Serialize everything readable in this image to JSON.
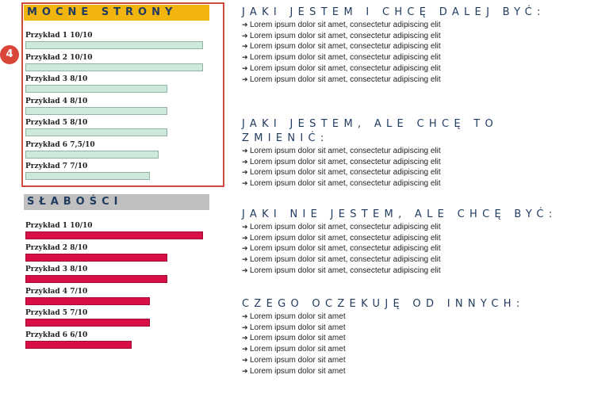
{
  "badge": "4",
  "strengths": {
    "title": "MOCNE STRONY",
    "items": [
      {
        "label": "Przykład 1 10/10",
        "value": 10
      },
      {
        "label": "Przykład 2 10/10",
        "value": 10
      },
      {
        "label": "Przykład 3 8/10",
        "value": 8
      },
      {
        "label": "Przykład 4 8/10",
        "value": 8
      },
      {
        "label": "Przykład 5 8/10",
        "value": 8
      },
      {
        "label": "Przykład 6 7,5/10",
        "value": 7.5
      },
      {
        "label": "Przykład 7 7/10",
        "value": 7
      }
    ],
    "bar_color": "#cfe8dc"
  },
  "weaknesses": {
    "title": "SŁABOŚCI",
    "items": [
      {
        "label": "Przykład 1 10/10",
        "value": 10
      },
      {
        "label": "Przykład 2 8/10",
        "value": 8
      },
      {
        "label": "Przykład 3 8/10",
        "value": 8
      },
      {
        "label": "Przykład 4 7/10",
        "value": 7
      },
      {
        "label": "Przykład 5 7/10",
        "value": 7
      },
      {
        "label": "Przykład 6 6/10",
        "value": 6
      }
    ],
    "bar_color": "#d80f46"
  },
  "accent_color": "#f2b50f",
  "heading_color": "#1f3b5f",
  "bullet_icon": "circled-arrow-right-icon",
  "blocks": [
    {
      "title": "JAKI JESTEM I CHCĘ DALEJ BYĆ:",
      "bullets": [
        "Lorem ipsum dolor sit amet, consectetur adipiscing elit",
        "Lorem ipsum dolor sit amet, consectetur adipiscing elit",
        "Lorem ipsum dolor sit amet, consectetur adipiscing elit",
        "Lorem ipsum dolor sit amet, consectetur adipiscing elit",
        "Lorem ipsum dolor sit amet, consectetur adipiscing elit",
        "Lorem ipsum dolor sit amet, consectetur adipiscing elit"
      ]
    },
    {
      "title": "JAKI JESTEM, ALE CHCĘ TO ZMIENIĆ:",
      "bullets": [
        "Lorem ipsum dolor sit amet, consectetur adipiscing elit",
        "Lorem ipsum dolor sit amet, consectetur adipiscing elit",
        "Lorem ipsum dolor sit amet, consectetur adipiscing elit",
        "Lorem ipsum dolor sit amet, consectetur adipiscing elit"
      ]
    },
    {
      "title": "JAKI NIE JESTEM, ALE CHCĘ BYĆ:",
      "bullets": [
        "Lorem ipsum dolor sit amet, consectetur adipiscing elit",
        "Lorem ipsum dolor sit amet, consectetur adipiscing elit",
        "Lorem ipsum dolor sit amet, consectetur adipiscing elit",
        "Lorem ipsum dolor sit amet, consectetur adipiscing elit",
        "Lorem ipsum dolor sit amet, consectetur adipiscing elit"
      ]
    },
    {
      "title": "CZEGO OCZEKUJĘ OD INNYCH:",
      "bullets": [
        "Lorem ipsum dolor sit amet",
        "Lorem ipsum dolor sit amet",
        "Lorem ipsum dolor sit amet",
        "Lorem ipsum dolor sit amet",
        "Lorem ipsum dolor sit amet",
        "Lorem ipsum dolor sit amet"
      ]
    }
  ]
}
